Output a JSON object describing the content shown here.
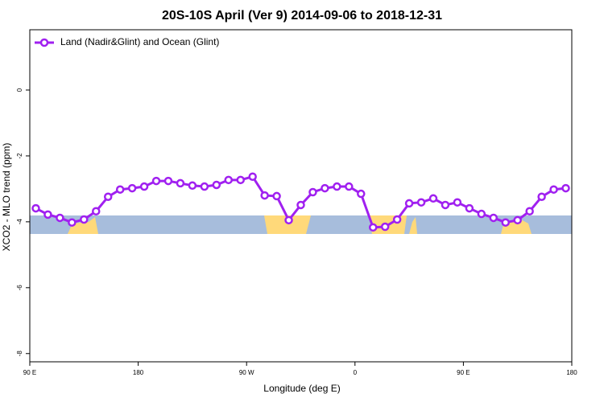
{
  "chart_data": {
    "type": "line",
    "title": "20S-10S April (Ver 9)   2014-09-06 to 2018-12-31",
    "x_label": "Longitude (deg E)",
    "y_label": "XCO2 - MLO trend (ppm)",
    "x": [
      95,
      105,
      115,
      125,
      135,
      145,
      155,
      165,
      175,
      185,
      195,
      205,
      215,
      225,
      235,
      245,
      255,
      265,
      275,
      285,
      295,
      305,
      315,
      325,
      335,
      345,
      355,
      365,
      375,
      385,
      395,
      405,
      415,
      425,
      435,
      445,
      455,
      465,
      475,
      485,
      495,
      505,
      515,
      525,
      535
    ],
    "series": [
      {
        "name": "Land (Nadir&Glint) and Ocean (Glint)",
        "color": "#a020f0",
        "values": [
          -3.59,
          -3.78,
          -3.88,
          -4.02,
          -3.93,
          -3.68,
          -3.24,
          -3.02,
          -2.98,
          -2.93,
          -2.76,
          -2.76,
          -2.83,
          -2.9,
          -2.93,
          -2.88,
          -2.73,
          -2.73,
          -2.63,
          -3.2,
          -3.22,
          -3.95,
          -3.49,
          -3.1,
          -2.98,
          -2.93,
          -2.93,
          -3.15,
          -4.17,
          -4.15,
          -3.93,
          -3.44,
          -3.41,
          -3.29,
          -3.49,
          -3.41,
          -3.59,
          -3.76,
          -3.88,
          -4.02,
          -3.95,
          -3.68,
          -3.24,
          -3.02,
          -2.98
        ]
      }
    ],
    "xlim": [
      90,
      540
    ],
    "xticks": [
      {
        "value": 90,
        "label": "90 E"
      },
      180,
      {
        "value": 270,
        "label": "90 W"
      },
      {
        "value": 360,
        "label": "0"
      },
      {
        "value": 450,
        "label": "90 E"
      },
      {
        "value": 540,
        "label": "180"
      }
    ],
    "ylim": [
      -8.25,
      1.83
    ],
    "yticks": [
      0,
      -2,
      -4,
      -6,
      -8
    ],
    "legend": "top-left"
  }
}
